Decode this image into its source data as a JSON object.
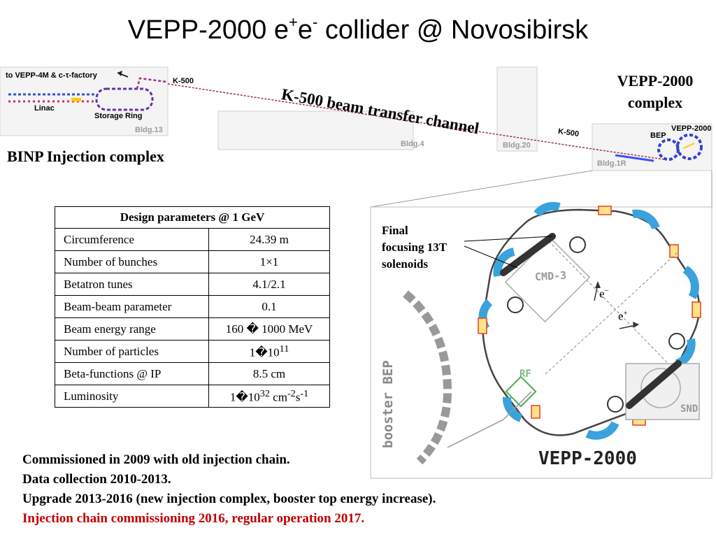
{
  "title": {
    "prefix": "VEPP-2000 e",
    "sup1": "+",
    "mid": "e",
    "sup2": "-",
    "suffix": " collider @ Novosibirsk"
  },
  "map": {
    "to_vepp4m": "to VEPP-4M & c-τ-factory",
    "linac": "Linac",
    "storage_ring": "Storage Ring",
    "bldg13": "Bldg.13",
    "k500_left": "K-500",
    "k500_right": "K-500",
    "bldg4": "Bldg.4",
    "bldg20": "Bldg.20",
    "bldg1r": "Bldg.1R",
    "bep": "BEP",
    "vepp2000_small": "VEPP-2000",
    "channel_title": "K-500 beam transfer channel",
    "injection_complex": "BINP Injection complex",
    "vepp_complex_line1": "VEPP-2000",
    "vepp_complex_line2": "complex"
  },
  "params": {
    "header": "Design parameters @ 1 GeV",
    "rows": [
      {
        "name": "Circumference",
        "value": "24.39 m"
      },
      {
        "name": "Number of bunches",
        "value": "1×1"
      },
      {
        "name": "Betatron tunes",
        "value": "4.1/2.1"
      },
      {
        "name": "Beam-beam parameter",
        "value": "0.1"
      },
      {
        "name": "Beam energy range",
        "value": "160 � 1000 MeV"
      }
    ],
    "particles_name": "Number of particles",
    "particles_base": "1�10",
    "particles_exp": "11",
    "beta_name": "Beta-functions @ IP",
    "beta_value": "8.5 cm",
    "lumi_name": "Luminosity",
    "lumi_base": "1�10",
    "lumi_exp": "32",
    "lumi_unit": " cm",
    "lumi_exp2": "-2",
    "lumi_s": "s",
    "lumi_exp3": "-1"
  },
  "layout_labels": {
    "final_line1": "Final",
    "final_line2": "focusing 13T",
    "final_line3": "solenoids",
    "cmd3": "CMD-3",
    "snd": "SND",
    "rf": "RF",
    "booster": "booster BEP",
    "vepp2000_big": "VEPP-2000",
    "e_minus": "e",
    "e_minus_sup": "−",
    "e_plus": "e",
    "e_plus_sup": "+"
  },
  "notes": [
    "Commissioned in 2009 with old injection chain.",
    "Data collection 2010-2013.",
    "Upgrade 2013-2016 (new injection complex, booster top energy increase)."
  ],
  "notes_red": "Injection chain commissioning 2016, regular operation 2017.",
  "colors": {
    "red_note": "#c00000",
    "dipole_blue": "#3aa3dd",
    "quad_red": "#e0441c",
    "building_gray": "#cfcfcf"
  }
}
